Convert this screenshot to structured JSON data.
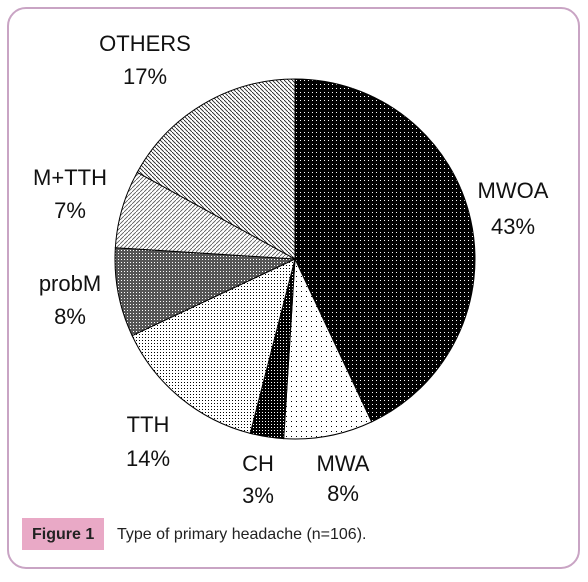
{
  "chart_data": {
    "type": "pie",
    "categories": [
      "MWOA",
      "MWA",
      "CH",
      "TTH",
      "probM",
      "M+TTH",
      "OTHERS"
    ],
    "values": [
      43,
      8,
      3,
      14,
      8,
      7,
      17
    ],
    "value_labels": [
      "43%",
      "8%",
      "3%",
      "14%",
      "8%",
      "7%",
      "17%"
    ],
    "caption_label": "Figure 1",
    "caption": "Type of primary headache (n=106)."
  }
}
